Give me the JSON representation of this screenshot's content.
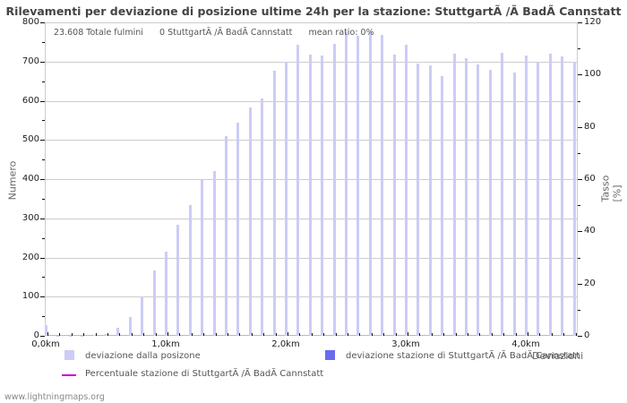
{
  "title": "Rilevamenti per deviazione di posizione ultime 24h per la stazione: StuttgartÃ /Ã BadÃ Cannstatt",
  "stats": {
    "total": "23.608 Totale fulmini",
    "station": "0 StuttgartÃ /Ã BadÃ Cannstatt",
    "mean_ratio": "mean ratio: 0%"
  },
  "axes": {
    "left_title": "Numero",
    "right_title": "Tasso [%]",
    "x_title": "Deviazioni",
    "left_ticks": [
      "0",
      "100",
      "200",
      "300",
      "400",
      "500",
      "600",
      "700",
      "800"
    ],
    "right_ticks": [
      "0",
      "20",
      "40",
      "60",
      "80",
      "100",
      "120"
    ],
    "x_ticks": [
      "0,0km",
      "1,0km",
      "2,0km",
      "3,0km",
      "4,0km"
    ]
  },
  "legend": {
    "item1": "deviazione dalla posizone",
    "item2": "deviazione stazione di StuttgartÃ /Ã BadÃ Cannstatt",
    "item3": "Percentuale stazione di StuttgartÃ /Ã BadÃ Cannstatt"
  },
  "colors": {
    "all": "#ccccf7",
    "station": "#6a6af0",
    "percent": "#cc00cc"
  },
  "footer": "www.lightningmaps.org",
  "chart_data": {
    "type": "bar",
    "title": "Rilevamenti per deviazione di posizione ultime 24h per la stazione: StuttgartÃ /Ã BadÃ Cannstatt",
    "xlabel": "Deviazioni",
    "ylabel": "Numero",
    "y2label": "Tasso [%]",
    "ylim": [
      0,
      800
    ],
    "y2lim": [
      0,
      120
    ],
    "grid": true,
    "legend_position": "bottom",
    "categories": [
      "0,0",
      "0,1",
      "0,2",
      "0,3",
      "0,4",
      "0,5",
      "0,6",
      "0,7",
      "0,8",
      "0,9",
      "1,0",
      "1,1",
      "1,2",
      "1,3",
      "1,4",
      "1,5",
      "1,6",
      "1,7",
      "1,8",
      "1,9",
      "2,0",
      "2,1",
      "2,2",
      "2,3",
      "2,4",
      "2,5",
      "2,6",
      "2,7",
      "2,8",
      "2,9",
      "3,0",
      "3,1",
      "3,2",
      "3,3",
      "3,4",
      "3,5",
      "3,6",
      "3,7",
      "3,8",
      "3,9",
      "4,0",
      "4,1",
      "4,2",
      "4,3",
      "4,4"
    ],
    "series": [
      {
        "name": "deviazione dalla posizone",
        "values": [
          28,
          1,
          1,
          1,
          2,
          5,
          20,
          48,
          100,
          167,
          215,
          283,
          333,
          400,
          420,
          510,
          545,
          583,
          605,
          677,
          700,
          742,
          717,
          715,
          745,
          778,
          765,
          778,
          768,
          717,
          742,
          695,
          690,
          663,
          720,
          708,
          692,
          680,
          722,
          672,
          715,
          700,
          720,
          713,
          700
        ]
      },
      {
        "name": "deviazione stazione di StuttgartÃ /Ã BadÃ Cannstatt",
        "values": [
          0,
          0,
          0,
          0,
          0,
          0,
          0,
          0,
          0,
          0,
          0,
          0,
          0,
          0,
          0,
          0,
          0,
          0,
          0,
          0,
          0,
          0,
          0,
          0,
          0,
          0,
          0,
          0,
          0,
          0,
          0,
          0,
          0,
          0,
          0,
          0,
          0,
          0,
          0,
          0,
          0,
          0,
          0,
          0,
          0
        ]
      },
      {
        "name": "Percentuale stazione di StuttgartÃ /Ã BadÃ Cannstatt",
        "type": "line",
        "values": []
      }
    ]
  }
}
